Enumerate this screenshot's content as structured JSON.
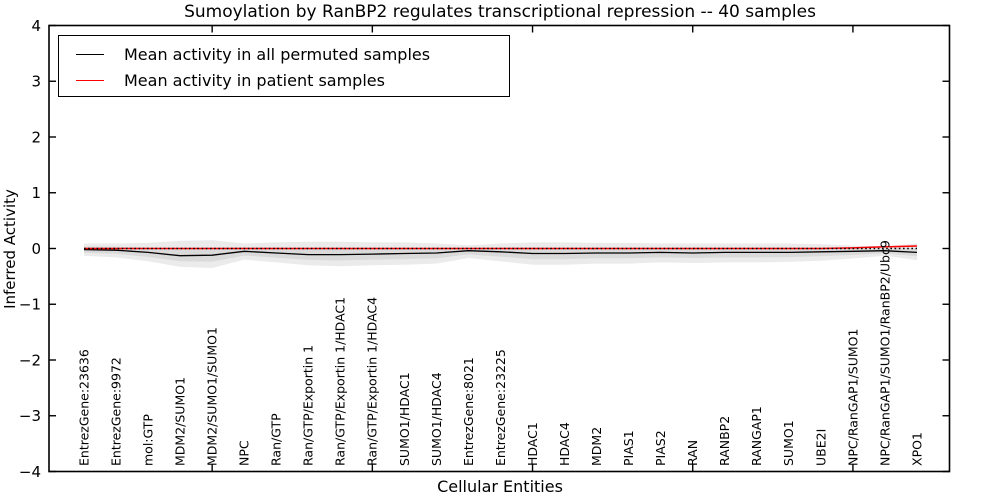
{
  "chart_data": {
    "type": "line",
    "title": "Sumoylation by RanBP2 regulates transcriptional repression -- 40 samples",
    "xlabel": "Cellular Entities",
    "ylabel": "Inferred Activity",
    "ylim": [
      -4,
      4
    ],
    "yticks": [
      -4,
      -3,
      -2,
      -1,
      0,
      1,
      2,
      3,
      4
    ],
    "xtick_mark_indices": [
      4,
      9,
      14,
      19,
      24
    ],
    "grid": false,
    "legend_position": "upper left",
    "categories": [
      "EntrezGene:23636",
      "EntrezGene:9972",
      "mol:GTP",
      "MDM2/SUMO1",
      "MDM2/SUMO1/SUMO1",
      "NPC",
      "Ran/GTP",
      "Ran/GTP/Exportin 1",
      "Ran/GTP/Exportin 1/HDAC1",
      "Ran/GTP/Exportin 1/HDAC4",
      "SUMO1/HDAC1",
      "SUMO1/HDAC4",
      "EntrezGene:8021",
      "EntrezGene:23225",
      "HDAC1",
      "HDAC4",
      "MDM2",
      "PIAS1",
      "PIAS2",
      "RAN",
      "RANBP2",
      "RANGAP1",
      "SUMO1",
      "UBE2I",
      "NPC/RanGAP1/SUMO1",
      "NPC/RanGAP1/SUMO1/RanBP2/Ubc9",
      "XPO1"
    ],
    "series": [
      {
        "name": "Mean activity in all permuted samples",
        "color": "#000000",
        "values": [
          -0.02,
          -0.03,
          -0.07,
          -0.13,
          -0.12,
          -0.05,
          -0.08,
          -0.11,
          -0.11,
          -0.1,
          -0.09,
          -0.08,
          -0.04,
          -0.06,
          -0.09,
          -0.09,
          -0.08,
          -0.08,
          -0.07,
          -0.08,
          -0.07,
          -0.07,
          -0.07,
          -0.06,
          -0.05,
          -0.04,
          -0.07
        ]
      },
      {
        "name": "Mean activity in patient samples",
        "color": "#ff0000",
        "values": [
          0,
          0,
          0,
          0,
          0,
          0,
          0,
          0,
          0,
          0,
          0,
          0,
          0,
          0,
          0,
          0,
          0,
          0,
          0,
          0,
          0,
          0,
          0,
          0,
          0.01,
          0.03,
          0.045
        ]
      }
    ],
    "uncertainty_band": {
      "around_series": "Mean activity in all permuted samples",
      "color": "#808080",
      "opacity": 0.16,
      "outer_upper": [
        0.09,
        0.09,
        0.1,
        0.14,
        0.15,
        0.09,
        0.11,
        0.12,
        0.12,
        0.11,
        0.11,
        0.09,
        0.06,
        0.09,
        0.11,
        0.11,
        0.1,
        0.1,
        0.09,
        0.09,
        0.09,
        0.09,
        0.09,
        0.08,
        0.05,
        0.04,
        0.09
      ],
      "outer_lower": [
        -0.13,
        -0.16,
        -0.23,
        -0.33,
        -0.35,
        -0.2,
        -0.25,
        -0.3,
        -0.32,
        -0.3,
        -0.29,
        -0.27,
        -0.17,
        -0.23,
        -0.29,
        -0.29,
        -0.27,
        -0.27,
        -0.25,
        -0.26,
        -0.25,
        -0.25,
        -0.24,
        -0.22,
        -0.18,
        -0.13,
        -0.21
      ]
    },
    "zero_line": {
      "value": 0,
      "style": "dotted",
      "color": "#000000"
    }
  }
}
